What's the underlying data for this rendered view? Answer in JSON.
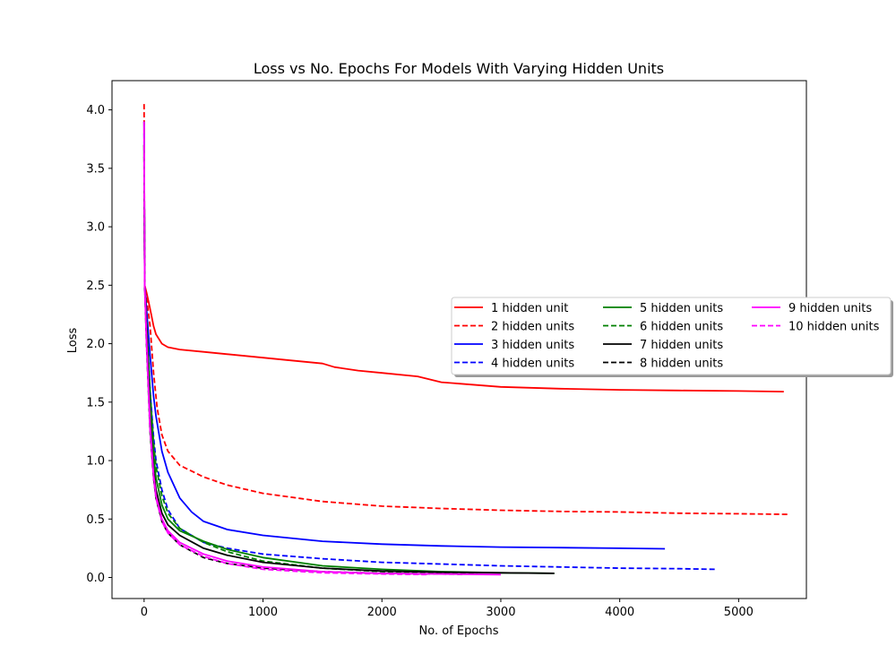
{
  "chart_data": {
    "type": "line",
    "title": "Loss vs No. Epochs For Models With Varying Hidden Units",
    "xlabel": "No. of Epochs",
    "ylabel": "Loss",
    "xlim": [
      -270,
      5570
    ],
    "ylim": [
      -0.18,
      4.25
    ],
    "xticks": [
      0,
      1000,
      2000,
      3000,
      4000,
      5000
    ],
    "yticks": [
      0.0,
      0.5,
      1.0,
      1.5,
      2.0,
      2.5,
      3.0,
      3.5,
      4.0
    ],
    "xtick_labels": [
      "0",
      "1000",
      "2000",
      "3000",
      "4000",
      "5000"
    ],
    "ytick_labels": [
      "0.0",
      "0.5",
      "1.0",
      "1.5",
      "2.0",
      "2.5",
      "3.0",
      "3.5",
      "4.0"
    ],
    "grid": false,
    "legend_position": "right",
    "legend_columns": 3,
    "series": [
      {
        "name": "1 hidden unit",
        "color": "#ff0000",
        "dash": "solid",
        "x": [
          0,
          5,
          20,
          40,
          60,
          80,
          100,
          150,
          200,
          300,
          500,
          700,
          1000,
          1200,
          1500,
          1600,
          1800,
          2000,
          2300,
          2500,
          3000,
          3500,
          4000,
          4500,
          5000,
          5380
        ],
        "y": [
          3.9,
          2.5,
          2.44,
          2.35,
          2.25,
          2.15,
          2.08,
          2.0,
          1.97,
          1.95,
          1.93,
          1.91,
          1.88,
          1.86,
          1.83,
          1.8,
          1.77,
          1.75,
          1.72,
          1.67,
          1.63,
          1.615,
          1.605,
          1.6,
          1.595,
          1.59
        ]
      },
      {
        "name": "2 hidden units",
        "color": "#ff0000",
        "dash": "dashed",
        "x": [
          0,
          5,
          20,
          50,
          80,
          110,
          150,
          200,
          300,
          500,
          700,
          1000,
          1500,
          2000,
          2500,
          3000,
          3500,
          4000,
          4500,
          5000,
          5430
        ],
        "y": [
          4.05,
          2.5,
          2.4,
          2.15,
          1.75,
          1.45,
          1.22,
          1.08,
          0.96,
          0.86,
          0.79,
          0.72,
          0.65,
          0.61,
          0.59,
          0.575,
          0.565,
          0.56,
          0.55,
          0.545,
          0.54
        ]
      },
      {
        "name": "3 hidden units",
        "color": "#0000ff",
        "dash": "solid",
        "x": [
          0,
          5,
          20,
          50,
          80,
          100,
          150,
          200,
          300,
          400,
          500,
          700,
          1000,
          1500,
          2000,
          2500,
          3000,
          3500,
          4000,
          4380
        ],
        "y": [
          3.9,
          2.5,
          2.3,
          1.9,
          1.55,
          1.38,
          1.08,
          0.9,
          0.68,
          0.56,
          0.48,
          0.41,
          0.36,
          0.31,
          0.285,
          0.27,
          0.26,
          0.255,
          0.25,
          0.245
        ]
      },
      {
        "name": "4 hidden units",
        "color": "#0000ff",
        "dash": "dashed",
        "x": [
          0,
          5,
          20,
          50,
          80,
          100,
          150,
          200,
          300,
          500,
          700,
          1000,
          1500,
          2000,
          2500,
          3000,
          3500,
          4000,
          4500,
          4800
        ],
        "y": [
          3.8,
          2.5,
          2.2,
          1.6,
          1.2,
          1.0,
          0.75,
          0.58,
          0.42,
          0.3,
          0.25,
          0.2,
          0.16,
          0.13,
          0.115,
          0.1,
          0.09,
          0.08,
          0.075,
          0.07
        ]
      },
      {
        "name": "5 hidden units",
        "color": "#008000",
        "dash": "solid",
        "x": [
          0,
          5,
          20,
          50,
          80,
          100,
          150,
          200,
          300,
          500,
          700,
          1000,
          1500,
          2000,
          2500,
          3000,
          3450
        ],
        "y": [
          3.7,
          2.5,
          2.15,
          1.5,
          1.05,
          0.85,
          0.62,
          0.5,
          0.4,
          0.31,
          0.24,
          0.17,
          0.1,
          0.07,
          0.05,
          0.04,
          0.035
        ]
      },
      {
        "name": "6 hidden units",
        "color": "#008000",
        "dash": "dashed",
        "x": [
          0,
          5,
          20,
          50,
          80,
          100,
          150,
          200,
          300,
          500,
          700,
          1000,
          1500,
          2000,
          2500,
          2800
        ],
        "y": [
          3.7,
          2.5,
          2.2,
          1.6,
          1.15,
          0.95,
          0.7,
          0.55,
          0.42,
          0.3,
          0.22,
          0.14,
          0.08,
          0.05,
          0.04,
          0.035
        ]
      },
      {
        "name": "7 hidden units",
        "color": "#000000",
        "dash": "solid",
        "x": [
          0,
          5,
          20,
          50,
          80,
          100,
          150,
          200,
          300,
          500,
          700,
          1000,
          1500,
          2000,
          2500,
          3000,
          3450
        ],
        "y": [
          3.7,
          2.5,
          2.1,
          1.35,
          0.92,
          0.75,
          0.55,
          0.45,
          0.36,
          0.25,
          0.19,
          0.13,
          0.08,
          0.055,
          0.045,
          0.04,
          0.035
        ]
      },
      {
        "name": "8 hidden units",
        "color": "#000000",
        "dash": "dashed",
        "x": [
          0,
          5,
          20,
          50,
          80,
          100,
          150,
          200,
          300,
          500,
          700,
          1000,
          1500,
          2000,
          2500,
          2700
        ],
        "y": [
          3.6,
          2.5,
          2.0,
          1.25,
          0.85,
          0.68,
          0.48,
          0.38,
          0.28,
          0.17,
          0.12,
          0.08,
          0.05,
          0.035,
          0.03,
          0.028
        ]
      },
      {
        "name": "9 hidden units",
        "color": "#ff00ff",
        "dash": "solid",
        "x": [
          0,
          5,
          20,
          50,
          80,
          100,
          150,
          200,
          300,
          500,
          700,
          1000,
          1500,
          2000,
          2500,
          3000
        ],
        "y": [
          3.9,
          2.5,
          2.05,
          1.3,
          0.88,
          0.7,
          0.5,
          0.4,
          0.3,
          0.2,
          0.14,
          0.09,
          0.05,
          0.035,
          0.03,
          0.025
        ]
      },
      {
        "name": "10 hidden units",
        "color": "#ff00ff",
        "dash": "dashed",
        "x": [
          0,
          5,
          20,
          50,
          80,
          100,
          150,
          200,
          300,
          500,
          700,
          1000,
          1500,
          2000,
          2400
        ],
        "y": [
          3.7,
          2.5,
          2.0,
          1.25,
          0.85,
          0.68,
          0.48,
          0.38,
          0.28,
          0.18,
          0.12,
          0.07,
          0.04,
          0.03,
          0.025
        ]
      }
    ]
  }
}
